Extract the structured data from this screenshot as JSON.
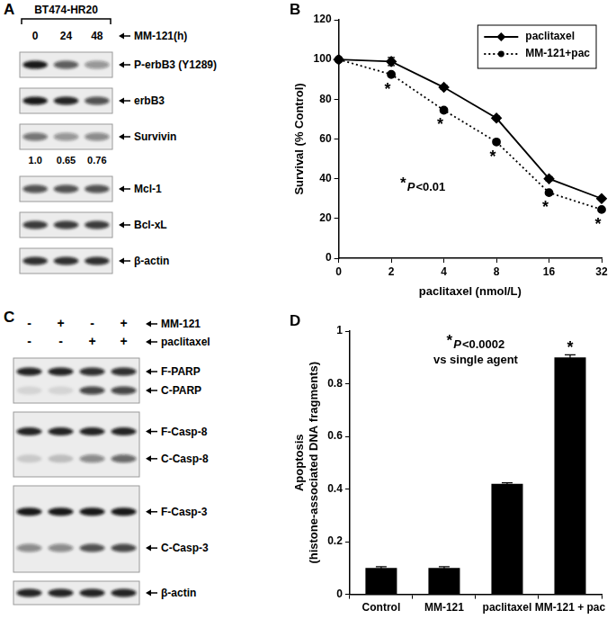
{
  "panels": {
    "A": {
      "panel_label": "A",
      "cell_line": "BT474-HR20",
      "lane_variable": "MM-121(h)",
      "lanes": [
        "0",
        "24",
        "48"
      ],
      "blots": [
        {
          "bands": [
            {
              "label": "P-erbB3 (Y1289)",
              "intensity": [
                0.95,
                0.65,
                0.4
              ]
            }
          ]
        },
        {
          "bands": [
            {
              "label": "erbB3",
              "intensity": [
                0.95,
                0.9,
                0.7
              ]
            }
          ]
        },
        {
          "bands": [
            {
              "label": "Survivin",
              "intensity": [
                0.55,
                0.4,
                0.45
              ]
            }
          ],
          "quantification": [
            "1.0",
            "0.65",
            "0.76"
          ]
        },
        {
          "bands": [
            {
              "label": "Mcl-1",
              "intensity": [
                0.7,
                0.7,
                0.7
              ]
            }
          ]
        },
        {
          "bands": [
            {
              "label": "Bcl-xL",
              "intensity": [
                0.8,
                0.8,
                0.8
              ]
            }
          ]
        },
        {
          "bands": [
            {
              "label": "β-actin",
              "intensity": [
                0.85,
                0.85,
                0.85
              ]
            }
          ]
        }
      ]
    },
    "C": {
      "panel_label": "C",
      "conditions": [
        {
          "label": "MM-121",
          "signs": [
            "-",
            "+",
            "-",
            "+"
          ]
        },
        {
          "label": "paclitaxel",
          "signs": [
            "-",
            "-",
            "+",
            "+"
          ]
        }
      ],
      "blots": [
        {
          "bands": [
            {
              "label": "F-PARP",
              "intensity": [
                0.9,
                0.9,
                0.85,
                0.85
              ]
            },
            {
              "label": "C-PARP",
              "intensity": [
                0.1,
                0.1,
                0.75,
                0.75
              ]
            }
          ]
        },
        {
          "bands": [
            {
              "label": "F-Casp-8",
              "intensity": [
                0.9,
                0.9,
                0.9,
                0.9
              ]
            },
            {
              "label": "C-Casp-8",
              "intensity": [
                0.15,
                0.2,
                0.45,
                0.6
              ]
            }
          ]
        },
        {
          "bands": [
            {
              "label": "F-Casp-3",
              "intensity": [
                0.95,
                0.95,
                0.95,
                0.95
              ]
            },
            {
              "label": "C-Casp-3",
              "intensity": [
                0.45,
                0.45,
                0.7,
                0.75
              ]
            }
          ]
        },
        {
          "bands": [
            {
              "label": "β-actin",
              "intensity": [
                0.9,
                0.9,
                0.9,
                0.9
              ]
            }
          ]
        }
      ]
    }
  },
  "chart_data": [
    {
      "type": "line",
      "panel_label": "B",
      "categories": [
        0,
        2,
        4,
        8,
        16,
        32
      ],
      "x_label": "paclitaxel (nmol/L)",
      "y_label": "Survival (% Control)",
      "ylim": [
        0,
        120
      ],
      "yticks": [
        0,
        20,
        40,
        60,
        80,
        100,
        120
      ],
      "grid": false,
      "legend": "upper right",
      "series": [
        {
          "name": "paclitaxel",
          "color": "#000000",
          "marker": "diamond",
          "line_style": "solid",
          "values": [
            100,
            99,
            86,
            70.5,
            40,
            30
          ],
          "errors": [
            0,
            2,
            1,
            1,
            1,
            0.5
          ]
        },
        {
          "name": "MM-121+pac",
          "color": "#000000",
          "marker": "circle",
          "line_style": "dotted",
          "values": [
            100,
            92.5,
            74.5,
            58.5,
            33,
            24.5
          ],
          "errors": [
            0,
            1,
            1,
            1,
            0.5,
            0.5
          ],
          "point_labels": [
            null,
            "*",
            "*",
            "*",
            "*",
            "*"
          ]
        }
      ],
      "annotation": {
        "marker": "*",
        "lines": [
          "P<0.01"
        ]
      }
    },
    {
      "type": "bar",
      "panel_label": "D",
      "categories": [
        "Control",
        "MM-121",
        "paclitaxel",
        "MM-121 + pac"
      ],
      "values": [
        0.1,
        0.1,
        0.42,
        0.9
      ],
      "errors": [
        0.005,
        0.005,
        0.004,
        0.01
      ],
      "point_labels": [
        null,
        null,
        null,
        "*"
      ],
      "color": "#000000",
      "y_label": [
        "Apoptosis",
        "(histone-associated DNA fragments)"
      ],
      "ylim": [
        0,
        1
      ],
      "yticks": [
        0,
        0.2,
        0.4,
        0.6,
        0.8,
        1
      ],
      "grid": false,
      "annotation": {
        "marker": "*",
        "lines": [
          "P<0.0002",
          "vs single agent"
        ]
      }
    }
  ]
}
